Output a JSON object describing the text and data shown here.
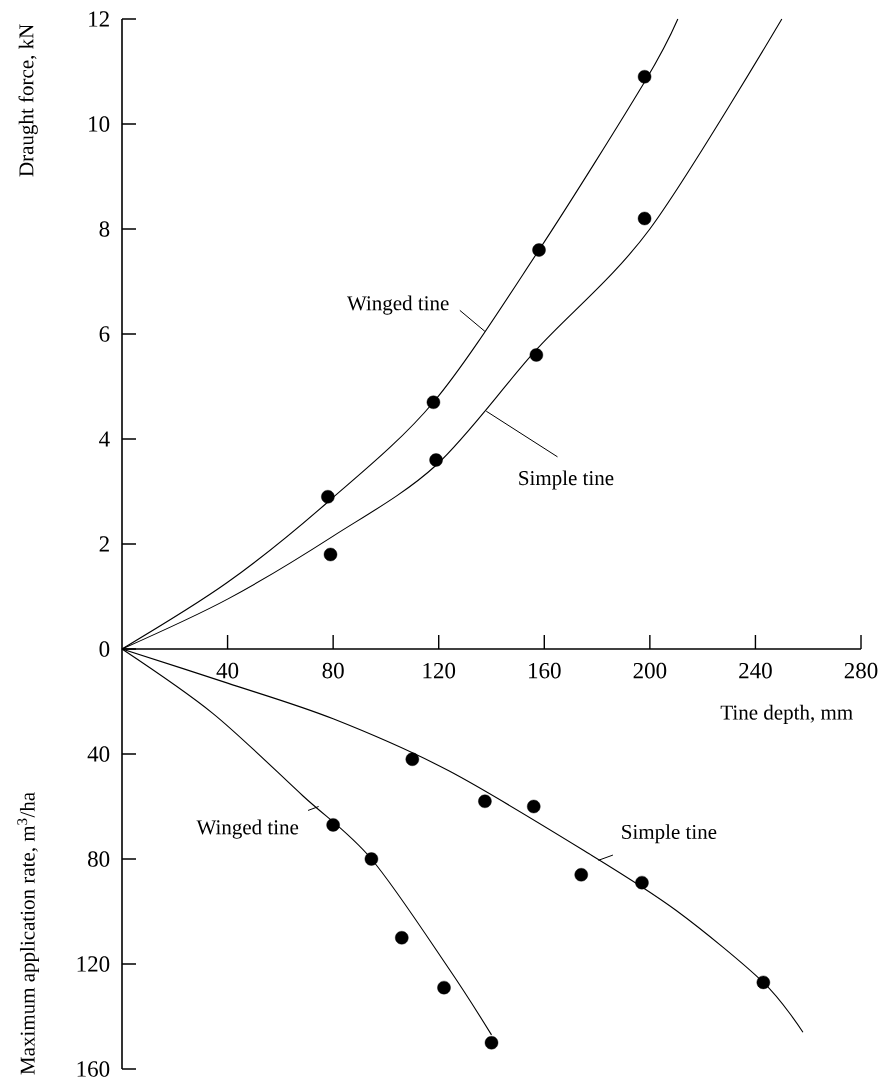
{
  "chart_data": [
    {
      "type": "scatter",
      "ylabel": "Draught force, kN",
      "xlabel": "Tine depth,  mm",
      "xlim": [
        0,
        280
      ],
      "ylim": [
        0,
        12
      ],
      "xticks": [
        40,
        80,
        120,
        160,
        200,
        240,
        280
      ],
      "yticks": [
        0,
        2,
        4,
        6,
        8,
        10,
        12
      ],
      "series": [
        {
          "marker": "circle",
          "color": "#000000",
          "x": [
            78,
            118,
            158,
            198
          ],
          "values": [
            2.9,
            4.7,
            7.6,
            10.9
          ]
        },
        {
          "marker": "circle",
          "color": "#000000",
          "x": [
            79,
            119,
            157,
            198
          ],
          "values": [
            1.8,
            3.6,
            5.6,
            8.2
          ]
        },
        {
          "type": "line",
          "marker": "none",
          "name": "Winged tine",
          "color": "#000000",
          "x": [
            0,
            40,
            78,
            118,
            158,
            198,
            210.6
          ],
          "values": [
            0,
            1.27,
            2.8,
            4.7,
            7.6,
            10.8,
            12
          ]
        },
        {
          "type": "line",
          "marker": "none",
          "name": "Simple tine",
          "color": "#000000",
          "x": [
            0,
            40,
            80,
            119,
            157,
            200,
            250
          ],
          "values": [
            0,
            0.95,
            2.15,
            3.5,
            5.7,
            8.0,
            12
          ]
        }
      ]
    },
    {
      "type": "scatter",
      "ylabel": "Maximum application rate,  m$^{3}$/ha",
      "xlim": [
        0,
        280
      ],
      "ylim": [
        160,
        0
      ],
      "yticks": [
        40,
        80,
        120,
        160
      ],
      "tick_labels": "y",
      "series": [
        {
          "marker": "circle",
          "color": "#000000",
          "x": [
            80,
            94.5,
            106,
            122,
            140
          ],
          "values": [
            67,
            80,
            110,
            129,
            150
          ]
        },
        {
          "marker": "circle",
          "color": "#000000",
          "x": [
            110,
            137.5,
            156,
            174,
            197,
            243
          ],
          "values": [
            42,
            58,
            60,
            86,
            89,
            127
          ]
        },
        {
          "type": "line",
          "marker": "none",
          "name": "Winged tine",
          "color": "#000000",
          "x": [
            0,
            34.5,
            68.6,
            94.5,
            124,
            140
          ],
          "values": [
            0,
            24.6,
            56,
            80,
            122,
            147
          ]
        },
        {
          "type": "line",
          "marker": "none",
          "name": "Simple tine",
          "color": "#000000",
          "x": [
            0,
            40,
            80,
            124,
            177,
            210,
            243,
            258
          ],
          "values": [
            0,
            13,
            26.6,
            46.5,
            78,
            99.6,
            127,
            146
          ]
        }
      ]
    }
  ]
}
